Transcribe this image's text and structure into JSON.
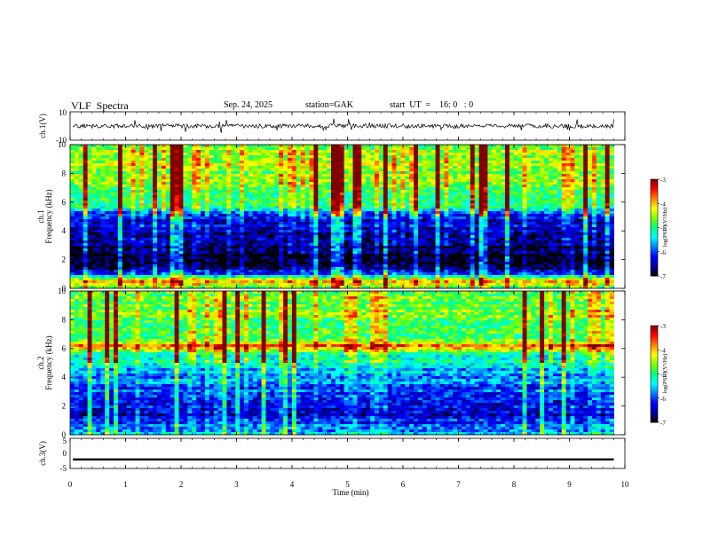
{
  "header": {
    "title": "VLF  Spectra",
    "date": "Sep. 24, 2025",
    "station": "station=GAK",
    "start": "start  UT  =    16: 0   : 0"
  },
  "chart_data": {
    "type": "heatmap",
    "title": "VLF  Spectra",
    "xlabel": "Time  (min)",
    "xlim": [
      0,
      10
    ],
    "xticks": [
      "0",
      "1",
      "2",
      "3",
      "4",
      "5",
      "6",
      "7",
      "8",
      "9",
      "10"
    ],
    "panels": [
      {
        "id": "ch1-waveform",
        "type": "line",
        "ylabel": "ch.1(V)",
        "ylim": [
          -10,
          10
        ],
        "ytick_labels": {
          "top": "10",
          "bottom": "-10"
        },
        "baseline": 0,
        "amplitude_typical": 1.5,
        "amplitude_spikes": 4
      },
      {
        "id": "ch1-spectrogram",
        "type": "heatmap",
        "ylabel": "ch.1\nFrequency  (kHz)",
        "ylabel_lines": [
          "ch.1",
          "Frequency  (kHz)"
        ],
        "ylim_khz": [
          0,
          10
        ],
        "yticks": [
          "0",
          "2",
          "4",
          "6",
          "8",
          "10"
        ],
        "colorbar": {
          "label": "log(PSD)(V²/Hz)",
          "range": [
            -7,
            -3
          ],
          "ticks": [
            "-3",
            "-4",
            "-5",
            "-6",
            "-7"
          ]
        },
        "frequency_profile_log_psd": [
          {
            "f_khz": 0.0,
            "v": -5.0
          },
          {
            "f_khz": 0.5,
            "v": -4.2
          },
          {
            "f_khz": 0.9,
            "v": -5.6
          },
          {
            "f_khz": 1.3,
            "v": -6.8
          },
          {
            "f_khz": 2.5,
            "v": -6.9
          },
          {
            "f_khz": 3.5,
            "v": -6.7
          },
          {
            "f_khz": 5.0,
            "v": -6.2
          },
          {
            "f_khz": 5.5,
            "v": -5.4
          },
          {
            "f_khz": 6.5,
            "v": -4.8
          },
          {
            "f_khz": 8.0,
            "v": -4.6
          },
          {
            "f_khz": 10.0,
            "v": -4.7
          }
        ]
      },
      {
        "id": "ch2-spectrogram",
        "type": "heatmap",
        "ylabel": "ch.2\nFrequency  (kHz)",
        "ylabel_lines": [
          "ch.2",
          "Frequency  (kHz)"
        ],
        "ylim_khz": [
          0,
          10
        ],
        "yticks": [
          "0",
          "2",
          "4",
          "6",
          "8",
          "10"
        ],
        "colorbar": {
          "label": "log(PSD)(V²/Hz)",
          "range": [
            -7,
            -3
          ],
          "ticks": [
            "-3",
            "-4",
            "-5",
            "-6",
            "-7"
          ]
        },
        "frequency_profile_log_psd": [
          {
            "f_khz": 0.0,
            "v": -5.2
          },
          {
            "f_khz": 0.6,
            "v": -6.0
          },
          {
            "f_khz": 1.5,
            "v": -6.4
          },
          {
            "f_khz": 3.0,
            "v": -6.1
          },
          {
            "f_khz": 4.5,
            "v": -5.6
          },
          {
            "f_khz": 5.6,
            "v": -5.0
          },
          {
            "f_khz": 6.2,
            "v": -3.9
          },
          {
            "f_khz": 6.8,
            "v": -4.9
          },
          {
            "f_khz": 8.0,
            "v": -4.7
          },
          {
            "f_khz": 10.0,
            "v": -4.8
          }
        ]
      },
      {
        "id": "ch3-waveform",
        "type": "line",
        "ylabel": "ch.3(V)",
        "ylim": [
          -5,
          5
        ],
        "ytick_labels": {
          "top": "5",
          "mid": "0",
          "bottom": "-5"
        },
        "baseline": -2
      }
    ],
    "colormap": [
      "#000000",
      "#0000a0",
      "#0000ff",
      "#0080ff",
      "#00ffff",
      "#00ff80",
      "#80ff00",
      "#ffff00",
      "#ff8000",
      "#ff0000",
      "#800000"
    ]
  }
}
